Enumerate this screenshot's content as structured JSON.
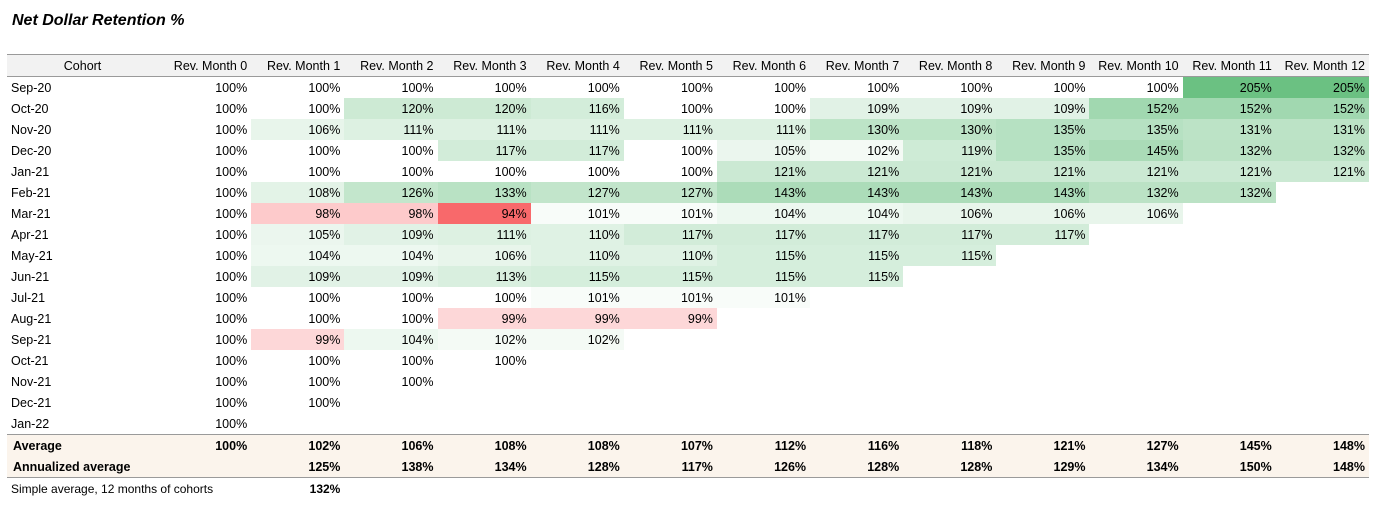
{
  "title": "Net Dollar Retention %",
  "headers": [
    "Cohort",
    "Rev. Month 0",
    "Rev. Month 1",
    "Rev. Month 2",
    "Rev. Month 3",
    "Rev. Month 4",
    "Rev. Month 5",
    "Rev. Month 6",
    "Rev. Month 7",
    "Rev. Month 8",
    "Rev. Month 9",
    "Rev. Month 10",
    "Rev. Month 11",
    "Rev. Month 12"
  ],
  "rows": [
    {
      "cohort": "Sep-20",
      "values": [
        "100%",
        "100%",
        "100%",
        "100%",
        "100%",
        "100%",
        "100%",
        "100%",
        "100%",
        "100%",
        "100%",
        "205%",
        "205%"
      ]
    },
    {
      "cohort": "Oct-20",
      "values": [
        "100%",
        "100%",
        "120%",
        "120%",
        "116%",
        "100%",
        "100%",
        "109%",
        "109%",
        "109%",
        "152%",
        "152%",
        "152%"
      ]
    },
    {
      "cohort": "Nov-20",
      "values": [
        "100%",
        "106%",
        "111%",
        "111%",
        "111%",
        "111%",
        "111%",
        "130%",
        "130%",
        "135%",
        "135%",
        "131%",
        "131%"
      ]
    },
    {
      "cohort": "Dec-20",
      "values": [
        "100%",
        "100%",
        "100%",
        "117%",
        "117%",
        "100%",
        "105%",
        "102%",
        "119%",
        "135%",
        "145%",
        "132%",
        "132%"
      ]
    },
    {
      "cohort": "Jan-21",
      "values": [
        "100%",
        "100%",
        "100%",
        "100%",
        "100%",
        "100%",
        "121%",
        "121%",
        "121%",
        "121%",
        "121%",
        "121%",
        "121%"
      ]
    },
    {
      "cohort": "Feb-21",
      "values": [
        "100%",
        "108%",
        "126%",
        "133%",
        "127%",
        "127%",
        "143%",
        "143%",
        "143%",
        "143%",
        "132%",
        "132%"
      ]
    },
    {
      "cohort": "Mar-21",
      "values": [
        "100%",
        "98%",
        "98%",
        "94%",
        "101%",
        "101%",
        "104%",
        "104%",
        "106%",
        "106%",
        "106%"
      ]
    },
    {
      "cohort": "Apr-21",
      "values": [
        "100%",
        "105%",
        "109%",
        "111%",
        "110%",
        "117%",
        "117%",
        "117%",
        "117%",
        "117%"
      ]
    },
    {
      "cohort": "May-21",
      "values": [
        "100%",
        "104%",
        "104%",
        "106%",
        "110%",
        "110%",
        "115%",
        "115%",
        "115%"
      ]
    },
    {
      "cohort": "Jun-21",
      "values": [
        "100%",
        "109%",
        "109%",
        "113%",
        "115%",
        "115%",
        "115%",
        "115%"
      ]
    },
    {
      "cohort": "Jul-21",
      "values": [
        "100%",
        "100%",
        "100%",
        "100%",
        "101%",
        "101%",
        "101%"
      ]
    },
    {
      "cohort": "Aug-21",
      "values": [
        "100%",
        "100%",
        "100%",
        "99%",
        "99%",
        "99%"
      ]
    },
    {
      "cohort": "Sep-21",
      "values": [
        "100%",
        "99%",
        "104%",
        "102%",
        "102%"
      ]
    },
    {
      "cohort": "Oct-21",
      "values": [
        "100%",
        "100%",
        "100%",
        "100%"
      ]
    },
    {
      "cohort": "Nov-21",
      "values": [
        "100%",
        "100%",
        "100%"
      ]
    },
    {
      "cohort": "Dec-21",
      "values": [
        "100%",
        "100%"
      ]
    },
    {
      "cohort": "Jan-22",
      "values": [
        "100%"
      ]
    }
  ],
  "average": {
    "label": "Average",
    "values": [
      "100%",
      "102%",
      "106%",
      "108%",
      "108%",
      "107%",
      "112%",
      "116%",
      "118%",
      "121%",
      "127%",
      "145%",
      "148%"
    ]
  },
  "annualized": {
    "label": "Annualized average",
    "values": [
      "",
      "125%",
      "138%",
      "134%",
      "128%",
      "117%",
      "126%",
      "128%",
      "128%",
      "129%",
      "134%",
      "150%",
      "148%"
    ]
  },
  "note": {
    "label": "Simple average, 12 months of cohorts",
    "value": "132%"
  },
  "colors": {
    "green_strong": "#63be7b",
    "white": "#ffffff",
    "red_strong": "#f8696b",
    "header_bg": "#f2f2f2",
    "summary_bg": "#fbf4ec"
  }
}
